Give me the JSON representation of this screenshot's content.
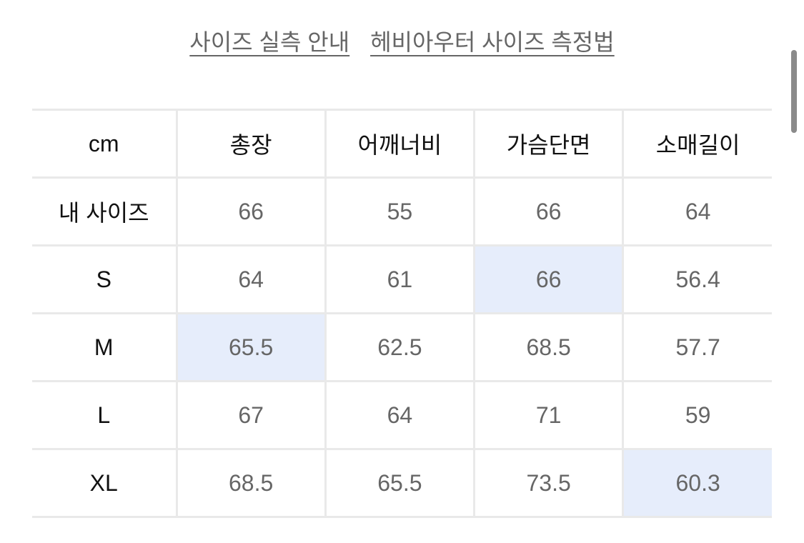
{
  "links": [
    "사이즈 실측 안내",
    "헤비아우터 사이즈 측정법"
  ],
  "table": {
    "headers": [
      "cm",
      "총장",
      "어깨너비",
      "가슴단면",
      "소매길이"
    ],
    "rows": [
      {
        "label": "내 사이즈",
        "values": [
          "66",
          "55",
          "66",
          "64"
        ],
        "highlight": []
      },
      {
        "label": "S",
        "values": [
          "64",
          "61",
          "66",
          "56.4"
        ],
        "highlight": [
          2
        ]
      },
      {
        "label": "M",
        "values": [
          "65.5",
          "62.5",
          "68.5",
          "57.7"
        ],
        "highlight": [
          0
        ]
      },
      {
        "label": "L",
        "values": [
          "67",
          "64",
          "71",
          "59"
        ],
        "highlight": []
      },
      {
        "label": "XL",
        "values": [
          "68.5",
          "65.5",
          "73.5",
          "60.3"
        ],
        "highlight": [
          3
        ]
      }
    ]
  },
  "colors": {
    "highlight": "#e6edfb",
    "border": "#e9e9e9",
    "value_text": "#666666"
  }
}
